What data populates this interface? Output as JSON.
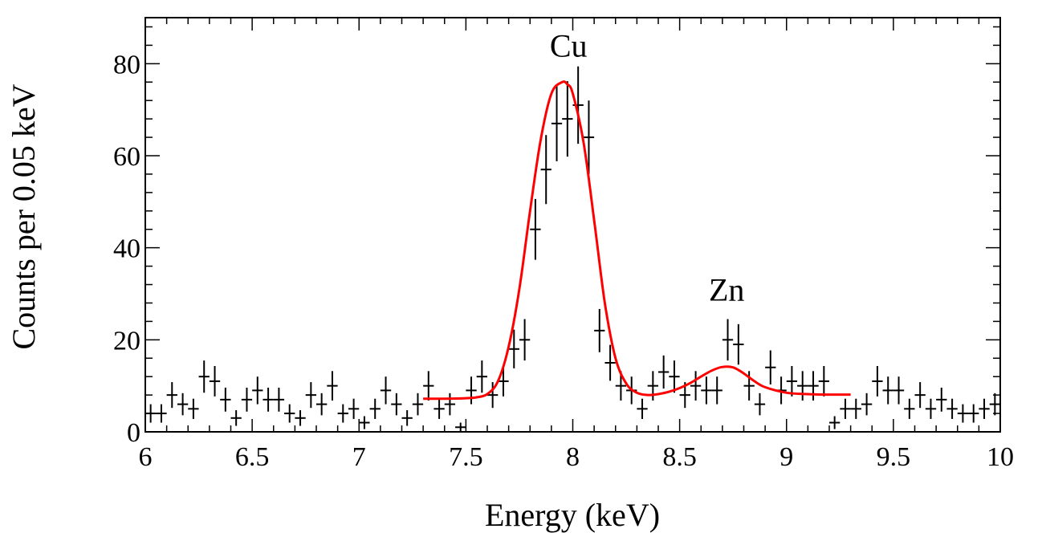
{
  "chart_data": {
    "type": "scatter",
    "title": "",
    "xlabel": "Energy (keV)",
    "ylabel": "Counts per 0.05 keV",
    "xlim": [
      6,
      10
    ],
    "ylim": [
      0,
      90
    ],
    "x_ticks": [
      6,
      6.5,
      7,
      7.5,
      8,
      8.5,
      9,
      9.5,
      10
    ],
    "x_tick_labels": [
      "6",
      "6.5",
      "7",
      "7.5",
      "8",
      "8.5",
      "9",
      "9.5",
      "10"
    ],
    "y_ticks": [
      0,
      20,
      40,
      60,
      80
    ],
    "y_tick_labels": [
      "0",
      "20",
      "40",
      "60",
      "80"
    ],
    "grid": false,
    "bin_width": 0.05,
    "series": [
      {
        "kind": "histogram_with_errors",
        "color": "#000000",
        "x": [
          6.025,
          6.075,
          6.125,
          6.175,
          6.225,
          6.275,
          6.325,
          6.375,
          6.425,
          6.475,
          6.525,
          6.575,
          6.625,
          6.675,
          6.725,
          6.775,
          6.825,
          6.875,
          6.925,
          6.975,
          7.025,
          7.075,
          7.125,
          7.175,
          7.225,
          7.275,
          7.325,
          7.375,
          7.425,
          7.475,
          7.525,
          7.575,
          7.625,
          7.675,
          7.725,
          7.775,
          7.825,
          7.875,
          7.925,
          7.975,
          8.025,
          8.075,
          8.125,
          8.175,
          8.225,
          8.275,
          8.325,
          8.375,
          8.425,
          8.475,
          8.525,
          8.575,
          8.625,
          8.675,
          8.725,
          8.775,
          8.825,
          8.875,
          8.925,
          8.975,
          9.025,
          9.075,
          9.125,
          9.175,
          9.225,
          9.275,
          9.325,
          9.375,
          9.425,
          9.475,
          9.525,
          9.575,
          9.625,
          9.675,
          9.725,
          9.775,
          9.825,
          9.875,
          9.925,
          9.975
        ],
        "y": [
          4,
          4,
          8,
          6,
          5,
          12,
          11,
          7,
          3,
          7,
          9,
          7,
          7,
          4,
          3,
          8,
          6,
          10,
          4,
          5,
          2,
          5,
          9,
          6,
          3,
          6,
          10,
          5,
          6,
          1,
          9,
          12,
          8,
          11,
          18,
          20,
          44,
          57,
          67,
          68,
          71,
          64,
          22,
          15,
          10,
          9,
          5,
          10,
          13,
          12,
          8,
          10,
          9,
          9,
          20,
          19,
          10,
          6,
          14,
          9,
          11,
          10,
          10,
          11,
          2,
          5,
          5,
          6,
          11,
          9,
          9,
          5,
          8,
          5,
          7,
          5,
          4,
          4,
          5,
          6
        ],
        "y_err": [
          2,
          2,
          2.8,
          2.4,
          2.2,
          3.5,
          3.3,
          2.6,
          1.7,
          2.6,
          3,
          2.6,
          2.6,
          2,
          1.7,
          2.8,
          2.4,
          3.2,
          2,
          2.2,
          1.4,
          2.2,
          3,
          2.4,
          1.7,
          2.4,
          3.2,
          2.2,
          2.4,
          1,
          3,
          3.5,
          2.8,
          3.3,
          4.2,
          4.5,
          6.6,
          7.5,
          8.2,
          8.2,
          8.4,
          8,
          4.7,
          3.9,
          3.2,
          3,
          2.2,
          3.2,
          3.6,
          3.5,
          2.8,
          3.2,
          3,
          3,
          4.5,
          4.4,
          3.2,
          2.4,
          3.7,
          3,
          3.3,
          3.2,
          3.2,
          3.3,
          1.4,
          2.2,
          2.2,
          2.4,
          3.3,
          3,
          3,
          2.2,
          2.8,
          2.2,
          2.6,
          2.2,
          2,
          2,
          2.2,
          2.4
        ]
      },
      {
        "kind": "fit_curve",
        "color": "#ff0000",
        "x_range": [
          7.3,
          9.3
        ],
        "x": [
          7.3,
          7.4,
          7.5,
          7.55,
          7.6,
          7.65,
          7.7,
          7.75,
          7.8,
          7.85,
          7.9,
          7.95,
          7.975,
          8.0,
          8.05,
          8.1,
          8.15,
          8.2,
          8.25,
          8.3,
          8.35,
          8.4,
          8.45,
          8.5,
          8.55,
          8.6,
          8.65,
          8.7,
          8.75,
          8.8,
          8.85,
          8.9,
          9.0,
          9.1,
          9.2,
          9.3
        ],
        "y": [
          7.2,
          7.2,
          7.3,
          7.5,
          8.2,
          11,
          18.5,
          31,
          48,
          63.5,
          73.5,
          76,
          75.5,
          73.5,
          63,
          46,
          28,
          16,
          10.5,
          8.5,
          8,
          8.2,
          8.7,
          9.5,
          10.6,
          12,
          13.3,
          14.1,
          14,
          12.7,
          11,
          9.7,
          8.5,
          8.2,
          8.1,
          8.1
        ]
      }
    ],
    "annotations": [
      {
        "text": "Cu",
        "x": 7.98,
        "y": 84
      },
      {
        "text": "Zn",
        "x": 8.72,
        "y": 31
      }
    ]
  }
}
